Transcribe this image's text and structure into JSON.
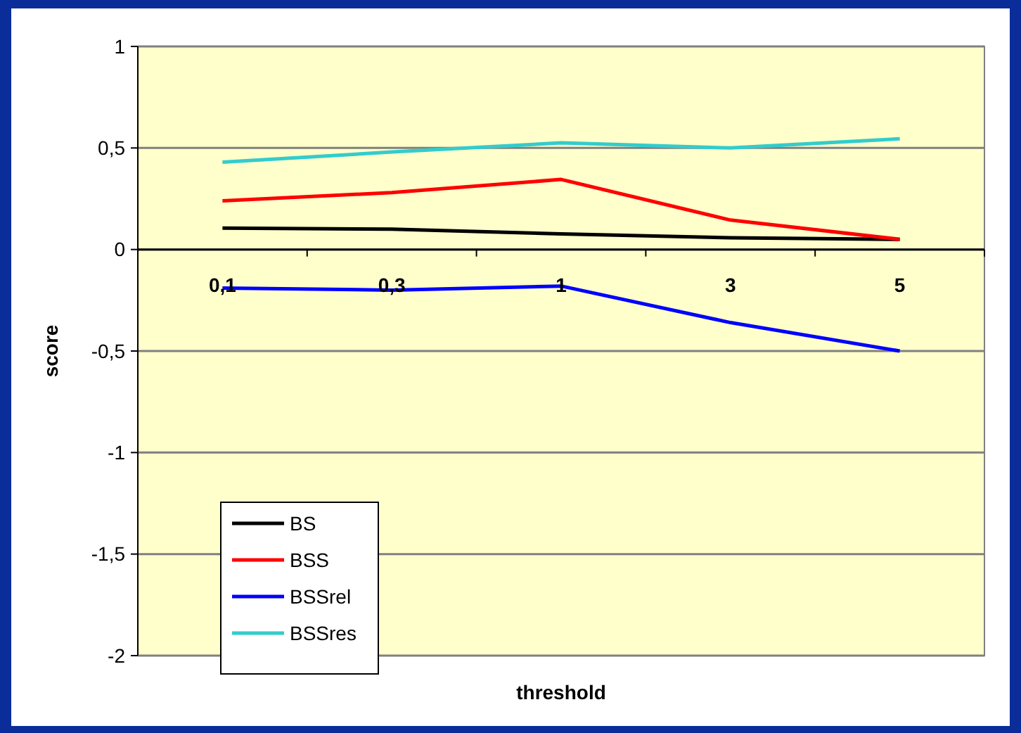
{
  "chart_data": {
    "type": "line",
    "xlabel": "threshold",
    "ylabel": "score",
    "categories": [
      "0,1",
      "0,3",
      "1",
      "3",
      "5"
    ],
    "series": [
      {
        "name": "BS",
        "color": "#000000",
        "values": [
          0.105,
          0.1,
          0.077,
          0.058,
          0.05
        ]
      },
      {
        "name": "BSS",
        "color": "#ff0000",
        "values": [
          0.24,
          0.28,
          0.345,
          0.145,
          0.05
        ]
      },
      {
        "name": "BSSrel",
        "color": "#0000ff",
        "values": [
          -0.19,
          -0.2,
          -0.18,
          -0.36,
          -0.5
        ]
      },
      {
        "name": "BSSres",
        "color": "#33cccc",
        "values": [
          0.43,
          0.48,
          0.525,
          0.5,
          0.545
        ]
      }
    ],
    "ylim": [
      -2,
      1
    ],
    "yticks": [
      {
        "value": -2,
        "label": "-2"
      },
      {
        "value": -1.5,
        "label": "-1,5"
      },
      {
        "value": -1,
        "label": "-1"
      },
      {
        "value": -0.5,
        "label": "-0,5"
      },
      {
        "value": 0,
        "label": "0"
      },
      {
        "value": 0.5,
        "label": "0,5"
      },
      {
        "value": 1,
        "label": "1"
      }
    ],
    "grid": "y",
    "legend": "bottom left",
    "marker": "none",
    "line_style": "solid"
  }
}
